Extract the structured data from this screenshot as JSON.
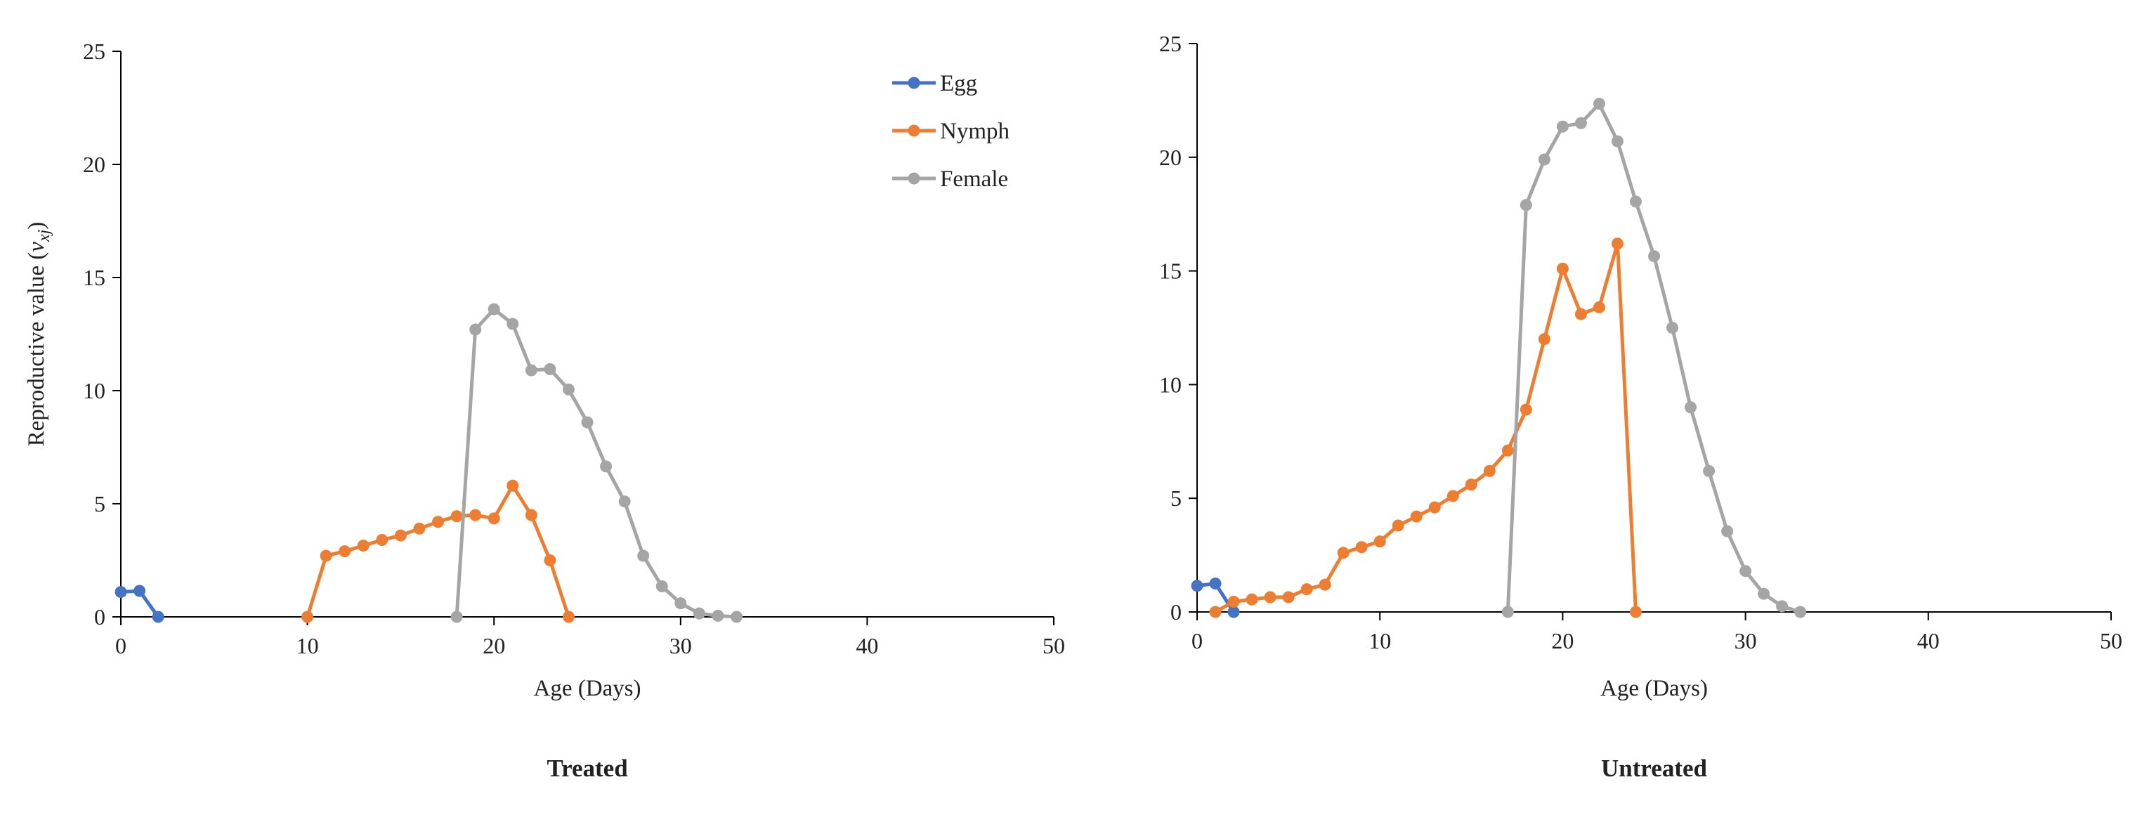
{
  "colors": {
    "Egg": "#4472C4",
    "Nymph": "#ED7D31",
    "Female": "#A5A5A5",
    "axis": "#000000"
  },
  "legend": {
    "placement": "top-right of left panel",
    "entries": [
      "Egg",
      "Nymph",
      "Female"
    ]
  },
  "chart_data": [
    {
      "type": "line",
      "title": "Treated",
      "xlabel": "Age (Days)",
      "ylabel": "Reproductive  value  (vxj)",
      "ylabel_main": "Reproductive  value  (",
      "ylabel_v": "v",
      "ylabel_sub": "xj",
      "ylabel_close": ")",
      "xlim": [
        0,
        50
      ],
      "ylim": [
        0,
        25
      ],
      "xticks": [
        0,
        10,
        20,
        30,
        40,
        50
      ],
      "yticks": [
        0,
        5,
        10,
        15,
        20,
        25
      ],
      "grid": false,
      "series": [
        {
          "name": "Egg",
          "x": [
            0,
            1,
            2
          ],
          "y": [
            1.1,
            1.15,
            0
          ]
        },
        {
          "name": "Nymph",
          "x": [
            10,
            11,
            12,
            13,
            14,
            15,
            16,
            17,
            18,
            19,
            20,
            21,
            22,
            23,
            24
          ],
          "y": [
            0,
            2.7,
            2.9,
            3.15,
            3.4,
            3.6,
            3.9,
            4.2,
            4.45,
            4.5,
            4.35,
            5.8,
            4.5,
            2.5,
            0
          ]
        },
        {
          "name": "Female",
          "x": [
            18,
            19,
            20,
            21,
            22,
            23,
            24,
            25,
            26,
            27,
            28,
            29,
            30,
            31,
            32,
            33
          ],
          "y": [
            0,
            12.7,
            13.6,
            12.95,
            10.9,
            10.95,
            10.05,
            8.6,
            6.65,
            5.1,
            2.7,
            1.35,
            0.6,
            0.15,
            0.05,
            0
          ]
        }
      ]
    },
    {
      "type": "line",
      "title": "Untreated",
      "xlabel": "Age (Days)",
      "ylabel": "",
      "xlim": [
        0,
        50
      ],
      "ylim": [
        0,
        25
      ],
      "xticks": [
        0,
        10,
        20,
        30,
        40,
        50
      ],
      "yticks": [
        0,
        5,
        10,
        15,
        20,
        25
      ],
      "grid": false,
      "series": [
        {
          "name": "Egg",
          "x": [
            0,
            1,
            2
          ],
          "y": [
            1.15,
            1.25,
            0
          ]
        },
        {
          "name": "Nymph",
          "x": [
            1,
            2,
            3,
            4,
            5,
            6,
            7,
            8,
            9,
            10,
            11,
            12,
            13,
            14,
            15,
            16,
            17,
            18,
            19,
            20,
            21,
            22,
            23,
            24
          ],
          "y": [
            0,
            0.45,
            0.55,
            0.65,
            0.65,
            1.0,
            1.2,
            2.6,
            2.85,
            3.1,
            3.8,
            4.2,
            4.6,
            5.1,
            5.6,
            6.2,
            7.1,
            8.9,
            12.0,
            15.1,
            13.1,
            13.4,
            16.2,
            0
          ]
        },
        {
          "name": "Female",
          "x": [
            17,
            18,
            19,
            20,
            21,
            22,
            23,
            24,
            25,
            26,
            27,
            28,
            29,
            30,
            31,
            32,
            33
          ],
          "y": [
            0,
            17.9,
            19.9,
            21.35,
            21.5,
            22.35,
            20.7,
            18.05,
            15.65,
            12.5,
            9.0,
            6.2,
            3.55,
            1.8,
            0.8,
            0.25,
            0
          ]
        }
      ]
    }
  ]
}
